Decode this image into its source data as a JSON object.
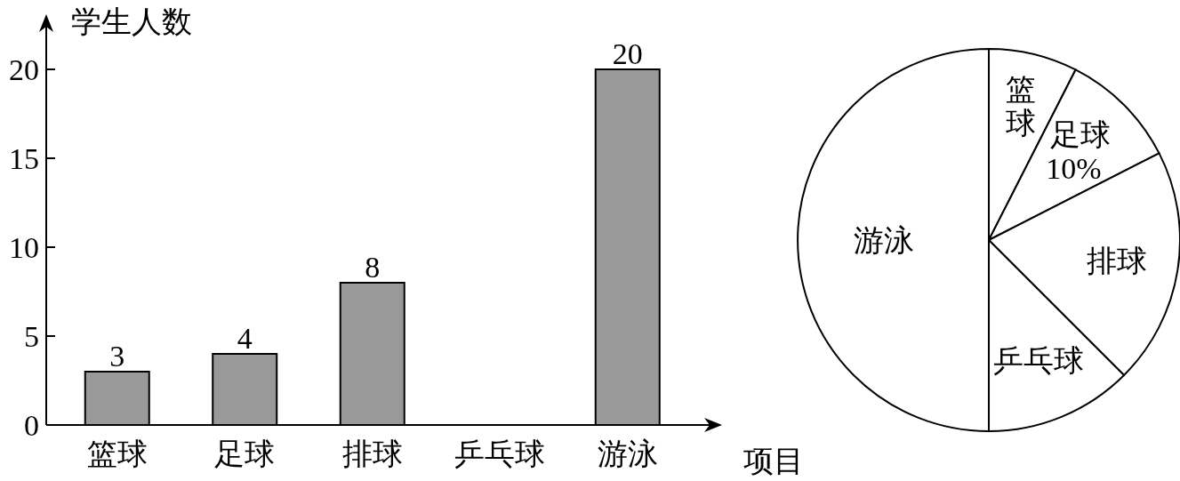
{
  "chart_data": [
    {
      "type": "bar",
      "ylabel": "学生人数",
      "xlabel": "项目",
      "categories": [
        "篮球",
        "足球",
        "排球",
        "乒乓球",
        "游泳"
      ],
      "values": [
        3,
        4,
        8,
        null,
        20
      ],
      "color": "#999999",
      "ylim": [
        0,
        22.4
      ],
      "yticks": [
        0,
        5,
        10,
        15,
        20
      ],
      "data_labels": true
    },
    {
      "type": "pie",
      "categories": [
        "篮球",
        "足球",
        "排球",
        "乒乓球",
        "游泳"
      ],
      "values": [
        7.5,
        10,
        20,
        12.5,
        50
      ],
      "colors": [
        "#ffffff",
        "#ffffff",
        "#ffffff",
        "#ffffff",
        "#ffffff"
      ],
      "value_labels": [
        null,
        "10%",
        null,
        null,
        null
      ]
    }
  ]
}
